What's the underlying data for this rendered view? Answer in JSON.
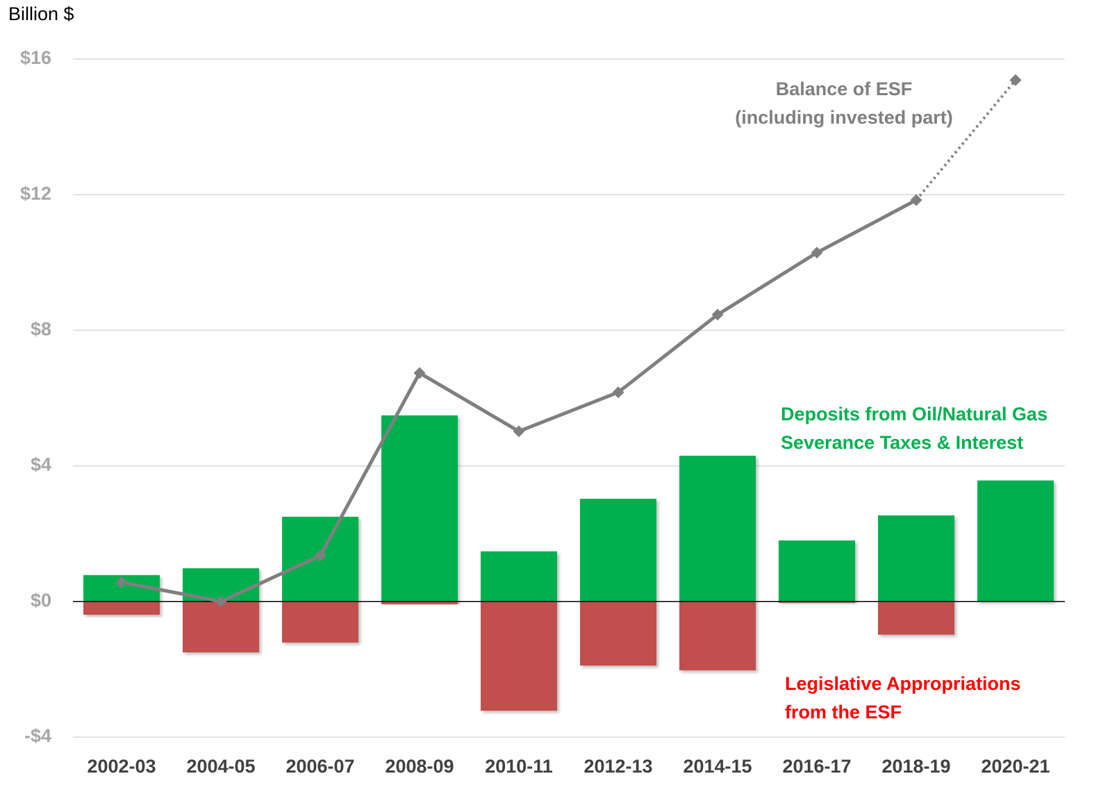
{
  "chart_data": {
    "type": "bar",
    "y_axis_label": "Billion $",
    "categories": [
      "2002-03",
      "2004-05",
      "2006-07",
      "2008-09",
      "2010-11",
      "2012-13",
      "2014-15",
      "2016-17",
      "2018-19",
      "2020-21"
    ],
    "series": [
      {
        "label_lines": [
          "Deposits from Oil/Natural Gas",
          "Severance Taxes & Interest"
        ],
        "color": "#00b050",
        "kind": "bar",
        "values": [
          0.78,
          0.98,
          2.5,
          5.49,
          1.48,
          3.03,
          4.3,
          1.8,
          2.54,
          3.57
        ]
      },
      {
        "label_lines": [
          "Legislative Appropriations",
          "from the ESF"
        ],
        "color": "#c0504d",
        "label_color": "#ff0000",
        "kind": "bar",
        "values": [
          -0.39,
          -1.5,
          -1.21,
          -0.08,
          -3.22,
          -1.89,
          -2.03,
          -0.04,
          -0.98,
          0
        ]
      },
      {
        "label_lines": [
          "Balance of ESF",
          "(including invested part)"
        ],
        "color": "#7f7f7f",
        "kind": "line",
        "dotted_last_segment": true,
        "values": [
          0.57,
          0,
          1.35,
          6.74,
          5.02,
          6.17,
          8.46,
          10.29,
          11.84,
          15.38
        ]
      }
    ],
    "ylim": [
      -4,
      16
    ],
    "yticks": [
      {
        "value": -4,
        "label": "-$4"
      },
      {
        "value": 0,
        "label": "$0"
      },
      {
        "value": 4,
        "label": "$4"
      },
      {
        "value": 8,
        "label": "$8"
      },
      {
        "value": 12,
        "label": "$12"
      },
      {
        "value": 16,
        "label": "$16"
      }
    ],
    "grid": true
  }
}
